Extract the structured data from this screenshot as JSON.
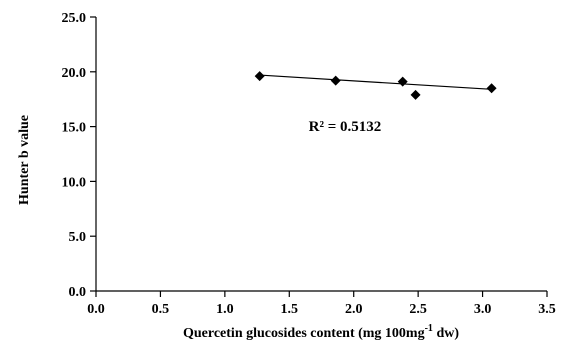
{
  "chart_data": {
    "type": "scatter",
    "title": "",
    "xlabel_main": "Quercetin glucosides content (mg 100mg",
    "xlabel_sup": "-1",
    "xlabel_end": " dw)",
    "ylabel": "Hunter b value",
    "xlim": [
      0,
      3.5
    ],
    "ylim": [
      0,
      25
    ],
    "x_ticks": [
      "0.0",
      "0.5",
      "1.0",
      "1.5",
      "2.0",
      "2.5",
      "3.0",
      "3.5"
    ],
    "y_ticks": [
      "0.0",
      "5.0",
      "10.0",
      "15.0",
      "20.0",
      "25.0"
    ],
    "points": [
      {
        "x": 1.27,
        "y": 19.6
      },
      {
        "x": 1.86,
        "y": 19.2
      },
      {
        "x": 2.38,
        "y": 19.1
      },
      {
        "x": 2.48,
        "y": 17.9
      },
      {
        "x": 3.07,
        "y": 18.5
      }
    ],
    "trendline": {
      "x_start": 1.27,
      "y_start": 19.7,
      "x_end": 3.07,
      "y_end": 18.4
    },
    "annotation": "R² = 0.5132",
    "annotation_at": {
      "x": 1.65,
      "y": 14.6
    },
    "grid": false,
    "legend": "none",
    "marker_color": "#000000"
  }
}
